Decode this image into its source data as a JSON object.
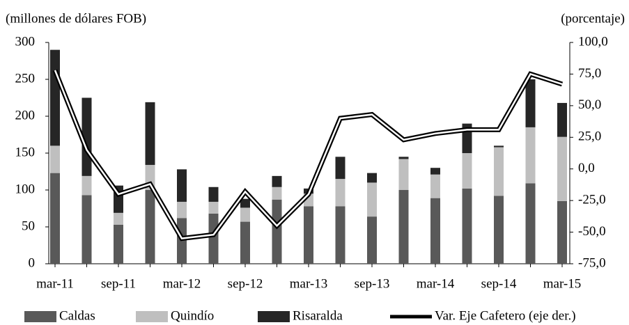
{
  "chart_data": {
    "type": "bar",
    "stacked": true,
    "y_label": "(millones de dólares FOB)",
    "y2_label": "(porcentaje)",
    "categories": [
      "mar-11",
      null,
      "sep-11",
      null,
      "mar-12",
      null,
      "sep-12",
      null,
      "mar-13",
      null,
      "sep-13",
      null,
      "mar-14",
      null,
      "sep-14",
      null,
      "mar-15"
    ],
    "series": [
      {
        "name": "Caldas",
        "color": "#595959",
        "values": [
          123,
          93,
          53,
          100,
          62,
          68,
          57,
          87,
          78,
          78,
          64,
          100,
          89,
          102,
          92,
          109,
          85
        ]
      },
      {
        "name": "Quindío",
        "color": "#bfbfbf",
        "values": [
          37,
          26,
          16,
          34,
          22,
          16,
          19,
          17,
          17,
          37,
          46,
          42,
          32,
          48,
          66,
          76,
          87
        ]
      },
      {
        "name": "Risaralda",
        "color": "#262626",
        "values": [
          130,
          106,
          37,
          85,
          44,
          20,
          12,
          15,
          7,
          30,
          13,
          3,
          9,
          40,
          2,
          65,
          46
        ]
      },
      {
        "name": "Var. Eje Cafetero (eje der.)",
        "color": "#000000",
        "type": "line",
        "axis": "y2",
        "values": [
          78,
          15,
          -20,
          -12,
          -55,
          -52,
          -18,
          -45,
          -20,
          40,
          43,
          23,
          28,
          31,
          31,
          75,
          67
        ]
      }
    ],
    "ylim": [
      0,
      300
    ],
    "yticks": [
      0,
      50,
      100,
      150,
      200,
      250,
      300
    ],
    "y2lim": [
      -75,
      100
    ],
    "y2ticks": [
      {
        "value": -75,
        "label": "-75,0"
      },
      {
        "value": -50,
        "label": "-50,0"
      },
      {
        "value": -25,
        "label": "-25,0"
      },
      {
        "value": 0,
        "label": "0,0"
      },
      {
        "value": 25,
        "label": "25,0"
      },
      {
        "value": 50,
        "label": "50,0"
      },
      {
        "value": 75,
        "label": "75,0"
      },
      {
        "value": 100,
        "label": "100,0"
      }
    ],
    "grid": false,
    "legend": "bottom"
  }
}
